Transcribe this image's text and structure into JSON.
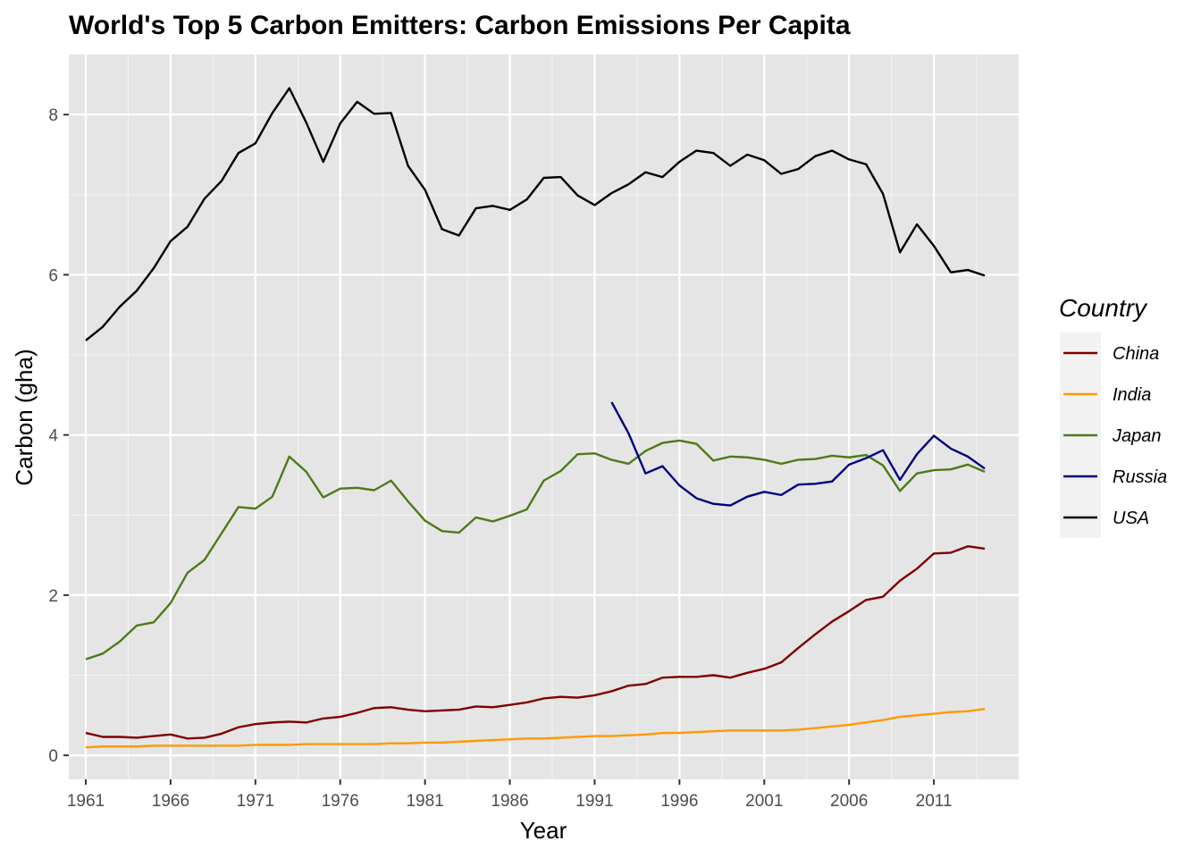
{
  "chart_data": {
    "type": "line",
    "title": "World's Top 5 Carbon Emitters: Carbon Emissions Per Capita",
    "xlabel": "Year",
    "ylabel": "Carbon (gha)",
    "xlim": [
      1960,
      2016
    ],
    "ylim": [
      -0.3,
      8.75
    ],
    "x_ticks": [
      "1961",
      "1966",
      "1971",
      "1976",
      "1981",
      "1986",
      "1991",
      "1996",
      "2001",
      "2006",
      "2011"
    ],
    "y_ticks": [
      "0",
      "2",
      "4",
      "6",
      "8"
    ],
    "grid": true,
    "legend": {
      "title": "Country",
      "position": "right"
    },
    "series": [
      {
        "name": "China",
        "color": "#7f0000",
        "start_year": 1961,
        "values": [
          0.28,
          0.23,
          0.23,
          0.22,
          0.24,
          0.26,
          0.21,
          0.22,
          0.27,
          0.35,
          0.39,
          0.41,
          0.42,
          0.41,
          0.46,
          0.48,
          0.53,
          0.59,
          0.6,
          0.57,
          0.55,
          0.56,
          0.57,
          0.61,
          0.6,
          0.63,
          0.66,
          0.71,
          0.73,
          0.72,
          0.75,
          0.8,
          0.87,
          0.89,
          0.97,
          0.98,
          0.98,
          1.0,
          0.97,
          1.03,
          1.08,
          1.16,
          1.34,
          1.51,
          1.67,
          1.8,
          1.94,
          1.98,
          2.18,
          2.33,
          2.52,
          2.53,
          2.61,
          2.58
        ]
      },
      {
        "name": "India",
        "color": "#ff9900",
        "start_year": 1961,
        "values": [
          0.1,
          0.11,
          0.11,
          0.11,
          0.12,
          0.12,
          0.12,
          0.12,
          0.12,
          0.12,
          0.13,
          0.13,
          0.13,
          0.14,
          0.14,
          0.14,
          0.14,
          0.14,
          0.15,
          0.15,
          0.16,
          0.16,
          0.17,
          0.18,
          0.19,
          0.2,
          0.21,
          0.21,
          0.22,
          0.23,
          0.24,
          0.24,
          0.25,
          0.26,
          0.28,
          0.28,
          0.29,
          0.3,
          0.31,
          0.31,
          0.31,
          0.31,
          0.32,
          0.34,
          0.36,
          0.38,
          0.41,
          0.44,
          0.48,
          0.5,
          0.52,
          0.54,
          0.55,
          0.58
        ]
      },
      {
        "name": "Japan",
        "color": "#4e7a1a",
        "start_year": 1961,
        "values": [
          1.2,
          1.27,
          1.42,
          1.62,
          1.66,
          1.9,
          2.28,
          2.44,
          2.77,
          3.1,
          3.08,
          3.23,
          3.73,
          3.54,
          3.22,
          3.33,
          3.34,
          3.31,
          3.43,
          3.17,
          2.93,
          2.8,
          2.78,
          2.97,
          2.92,
          2.99,
          3.07,
          3.43,
          3.55,
          3.76,
          3.77,
          3.69,
          3.64,
          3.8,
          3.9,
          3.93,
          3.89,
          3.68,
          3.73,
          3.72,
          3.69,
          3.64,
          3.69,
          3.7,
          3.74,
          3.72,
          3.75,
          3.62,
          3.3,
          3.52,
          3.56,
          3.57,
          3.63,
          3.54
        ]
      },
      {
        "name": "Russia",
        "color": "#000080",
        "start_year": 1992,
        "values": [
          4.41,
          4.02,
          3.52,
          3.61,
          3.37,
          3.21,
          3.14,
          3.12,
          3.23,
          3.29,
          3.25,
          3.38,
          3.39,
          3.42,
          3.63,
          3.71,
          3.81,
          3.44,
          3.76,
          3.99,
          3.83,
          3.73,
          3.58
        ]
      },
      {
        "name": "USA",
        "color": "#000000",
        "start_year": 1961,
        "values": [
          5.18,
          5.35,
          5.6,
          5.8,
          6.08,
          6.42,
          6.6,
          6.95,
          7.17,
          7.52,
          7.64,
          8.02,
          8.33,
          7.9,
          7.41,
          7.89,
          8.16,
          8.01,
          8.02,
          7.36,
          7.06,
          6.57,
          6.49,
          6.83,
          6.86,
          6.81,
          6.94,
          7.21,
          7.22,
          6.99,
          6.87,
          7.02,
          7.13,
          7.28,
          7.22,
          7.41,
          7.55,
          7.52,
          7.36,
          7.5,
          7.43,
          7.26,
          7.32,
          7.48,
          7.55,
          7.44,
          7.38,
          7.01,
          6.28,
          6.63,
          6.36,
          6.03,
          6.06,
          5.99
        ]
      }
    ]
  }
}
